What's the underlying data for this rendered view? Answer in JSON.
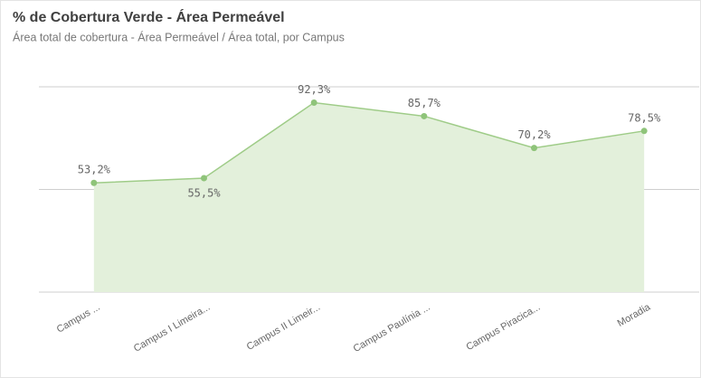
{
  "chart_data": {
    "type": "area",
    "title": "% de Cobertura Verde - Área Permeável",
    "subtitle": "Área total de cobertura - Área Permeável / Área total, por Campus",
    "categories": [
      "Campus ...",
      "Campus I Limeira...",
      "Campus II Limeir...",
      "Campus Paulínia ...",
      "Campus Piracica...",
      "Moradia"
    ],
    "values": [
      53.2,
      55.5,
      92.3,
      85.7,
      70.2,
      78.5
    ],
    "value_labels": [
      "53,2%",
      "55,5%",
      "92,3%",
      "85,7%",
      "70,2%",
      "78,5%"
    ],
    "color": "#9fcc88",
    "ylim": [
      0,
      100
    ],
    "yticks": [
      0,
      50,
      100
    ],
    "grid": true
  }
}
